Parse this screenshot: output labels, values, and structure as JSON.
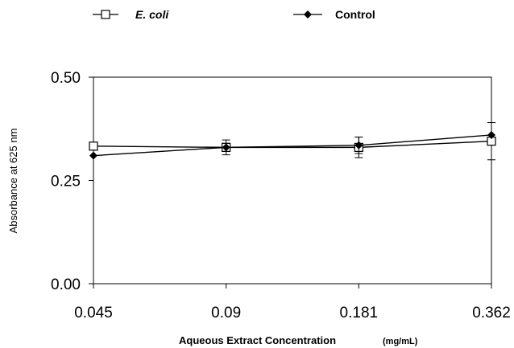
{
  "chart_data": {
    "type": "line",
    "categories": [
      "0.045",
      "0.09",
      "0.181",
      "0.362"
    ],
    "xlabel": "Aqueous Extract Concentration",
    "xlabel_unit": "(mg/mL)",
    "ylabel": "Absorbance at 625 nm",
    "ylim": [
      0,
      0.5
    ],
    "yticks": [
      "0.00",
      "0.25",
      "0.50"
    ],
    "grid": false,
    "legend_position": "top",
    "series": [
      {
        "name": "E. coli",
        "marker": "open-square",
        "color": "#000000",
        "values": [
          0.333,
          0.33,
          0.33,
          0.345
        ],
        "errors": [
          0.008,
          0.01,
          0.025,
          0.045
        ]
      },
      {
        "name": "Control",
        "marker": "filled-diamond",
        "color": "#000000",
        "values": [
          0.31,
          0.33,
          0.335,
          0.36
        ],
        "errors": [
          0.0,
          0.018,
          0.02,
          0.0
        ]
      }
    ]
  }
}
